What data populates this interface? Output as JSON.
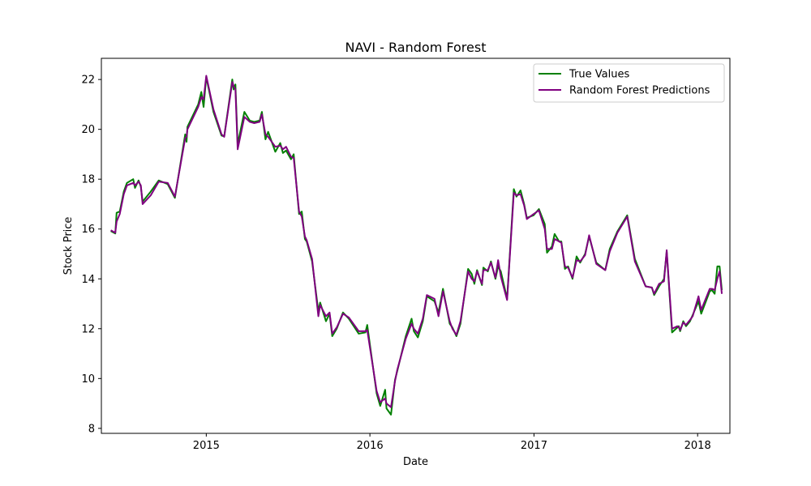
{
  "chart_data": {
    "type": "line",
    "title": "NAVI - Random Forest",
    "xlabel": "Date",
    "ylabel": "Stock Price",
    "x_axis": {
      "kind": "date",
      "range": [
        "2014-05-12",
        "2018-03-14"
      ],
      "ticks": [
        {
          "date": "2015-01-01",
          "label": "2015"
        },
        {
          "date": "2016-01-01",
          "label": "2016"
        },
        {
          "date": "2017-01-01",
          "label": "2017"
        },
        {
          "date": "2018-01-01",
          "label": "2018"
        }
      ]
    },
    "y_axis": {
      "range": [
        7.8,
        22.85
      ],
      "ticks": [
        8,
        10,
        12,
        14,
        16,
        18,
        20,
        22
      ]
    },
    "grid": false,
    "legend": {
      "placement": "top-right"
    },
    "series": [
      {
        "name": "True Values",
        "color": "#008000",
        "points": [
          [
            "2014-06-02",
            15.92
          ],
          [
            "2014-06-12",
            15.82
          ],
          [
            "2014-06-15",
            16.65
          ],
          [
            "2014-06-22",
            16.7
          ],
          [
            "2014-07-01",
            17.5
          ],
          [
            "2014-07-08",
            17.85
          ],
          [
            "2014-07-22",
            18.0
          ],
          [
            "2014-07-26",
            17.65
          ],
          [
            "2014-08-03",
            17.95
          ],
          [
            "2014-08-08",
            17.7
          ],
          [
            "2014-08-12",
            17.1
          ],
          [
            "2014-08-30",
            17.5
          ],
          [
            "2014-09-17",
            17.95
          ],
          [
            "2014-10-07",
            17.8
          ],
          [
            "2014-10-23",
            17.25
          ],
          [
            "2014-11-15",
            19.8
          ],
          [
            "2014-11-18",
            19.5
          ],
          [
            "2014-11-20",
            20.1
          ],
          [
            "2014-12-14",
            21.0
          ],
          [
            "2014-12-21",
            21.5
          ],
          [
            "2014-12-26",
            20.9
          ],
          [
            "2015-01-01",
            22.1
          ],
          [
            "2015-01-17",
            20.7
          ],
          [
            "2015-02-04",
            19.75
          ],
          [
            "2015-02-10",
            19.72
          ],
          [
            "2015-02-28",
            22.0
          ],
          [
            "2015-03-03",
            21.6
          ],
          [
            "2015-03-07",
            21.8
          ],
          [
            "2015-03-12",
            19.4
          ],
          [
            "2015-03-27",
            20.7
          ],
          [
            "2015-04-08",
            20.35
          ],
          [
            "2015-04-18",
            20.3
          ],
          [
            "2015-04-30",
            20.35
          ],
          [
            "2015-05-05",
            20.7
          ],
          [
            "2015-05-13",
            19.6
          ],
          [
            "2015-05-19",
            19.9
          ],
          [
            "2015-06-04",
            19.1
          ],
          [
            "2015-06-15",
            19.45
          ],
          [
            "2015-06-21",
            19.05
          ],
          [
            "2015-06-28",
            19.15
          ],
          [
            "2015-07-09",
            18.8
          ],
          [
            "2015-07-15",
            19.0
          ],
          [
            "2015-07-27",
            16.6
          ],
          [
            "2015-08-02",
            16.7
          ],
          [
            "2015-08-09",
            15.6
          ],
          [
            "2015-08-13",
            15.5
          ],
          [
            "2015-08-25",
            14.7
          ],
          [
            "2015-09-08",
            12.7
          ],
          [
            "2015-09-12",
            13.05
          ],
          [
            "2015-09-25",
            12.3
          ],
          [
            "2015-10-03",
            12.6
          ],
          [
            "2015-10-09",
            11.7
          ],
          [
            "2015-10-19",
            12.0
          ],
          [
            "2015-11-02",
            12.65
          ],
          [
            "2015-11-15",
            12.4
          ],
          [
            "2015-12-07",
            11.8
          ],
          [
            "2015-12-22",
            11.85
          ],
          [
            "2015-12-26",
            12.15
          ],
          [
            "2016-01-16",
            9.4
          ],
          [
            "2016-01-24",
            8.9
          ],
          [
            "2016-02-04",
            9.55
          ],
          [
            "2016-02-07",
            8.8
          ],
          [
            "2016-02-17",
            8.55
          ],
          [
            "2016-02-26",
            9.95
          ],
          [
            "2016-03-02",
            10.3
          ],
          [
            "2016-03-21",
            11.7
          ],
          [
            "2016-04-03",
            12.4
          ],
          [
            "2016-04-08",
            11.9
          ],
          [
            "2016-04-17",
            11.65
          ],
          [
            "2016-04-28",
            12.3
          ],
          [
            "2016-05-07",
            13.3
          ],
          [
            "2016-05-24",
            13.1
          ],
          [
            "2016-06-02",
            12.65
          ],
          [
            "2016-06-12",
            13.6
          ],
          [
            "2016-06-27",
            12.2
          ],
          [
            "2016-07-03",
            12.05
          ],
          [
            "2016-07-12",
            11.7
          ],
          [
            "2016-07-21",
            12.2
          ],
          [
            "2016-08-07",
            14.4
          ],
          [
            "2016-08-15",
            14.2
          ],
          [
            "2016-08-21",
            13.8
          ],
          [
            "2016-08-27",
            14.35
          ],
          [
            "2016-09-07",
            13.75
          ],
          [
            "2016-09-10",
            14.45
          ],
          [
            "2016-09-20",
            14.3
          ],
          [
            "2016-09-27",
            14.7
          ],
          [
            "2016-10-07",
            14.0
          ],
          [
            "2016-10-13",
            14.5
          ],
          [
            "2016-10-19",
            14.3
          ],
          [
            "2016-11-02",
            13.2
          ],
          [
            "2016-11-17",
            17.6
          ],
          [
            "2016-11-23",
            17.3
          ],
          [
            "2016-12-02",
            17.55
          ],
          [
            "2016-12-10",
            17.0
          ],
          [
            "2016-12-16",
            16.45
          ],
          [
            "2016-12-31",
            16.55
          ],
          [
            "2017-01-12",
            16.8
          ],
          [
            "2017-01-25",
            16.2
          ],
          [
            "2017-01-30",
            15.05
          ],
          [
            "2017-02-10",
            15.3
          ],
          [
            "2017-02-16",
            15.8
          ],
          [
            "2017-02-26",
            15.5
          ],
          [
            "2017-03-03",
            15.5
          ],
          [
            "2017-03-11",
            14.4
          ],
          [
            "2017-03-18",
            14.5
          ],
          [
            "2017-03-28",
            14.0
          ],
          [
            "2017-04-06",
            14.9
          ],
          [
            "2017-04-14",
            14.65
          ],
          [
            "2017-04-25",
            15.0
          ],
          [
            "2017-05-04",
            15.7
          ],
          [
            "2017-05-20",
            14.65
          ],
          [
            "2017-06-09",
            14.35
          ],
          [
            "2017-06-19",
            15.2
          ],
          [
            "2017-07-06",
            15.9
          ],
          [
            "2017-07-28",
            16.55
          ],
          [
            "2017-08-14",
            14.8
          ],
          [
            "2017-09-07",
            13.7
          ],
          [
            "2017-09-21",
            13.65
          ],
          [
            "2017-09-26",
            13.35
          ],
          [
            "2017-10-07",
            13.7
          ],
          [
            "2017-10-18",
            14.0
          ],
          [
            "2017-10-24",
            15.1
          ],
          [
            "2017-11-05",
            11.85
          ],
          [
            "2017-11-17",
            12.05
          ],
          [
            "2017-11-20",
            12.1
          ],
          [
            "2017-11-23",
            11.9
          ],
          [
            "2017-11-30",
            12.3
          ],
          [
            "2017-12-06",
            12.1
          ],
          [
            "2017-12-15",
            12.3
          ],
          [
            "2017-12-21",
            12.55
          ],
          [
            "2018-01-03",
            13.1
          ],
          [
            "2018-01-09",
            12.6
          ],
          [
            "2018-01-28",
            13.5
          ],
          [
            "2018-02-02",
            13.55
          ],
          [
            "2018-02-08",
            13.4
          ],
          [
            "2018-02-14",
            14.5
          ],
          [
            "2018-02-19",
            14.5
          ],
          [
            "2018-02-24",
            13.55
          ]
        ]
      },
      {
        "name": "Random Forest Predictions",
        "color": "#800080",
        "points": [
          [
            "2014-06-02",
            15.95
          ],
          [
            "2014-06-12",
            15.85
          ],
          [
            "2014-06-15",
            16.3
          ],
          [
            "2014-06-22",
            16.6
          ],
          [
            "2014-07-01",
            17.4
          ],
          [
            "2014-07-08",
            17.75
          ],
          [
            "2014-07-22",
            17.85
          ],
          [
            "2014-07-26",
            17.75
          ],
          [
            "2014-08-03",
            17.9
          ],
          [
            "2014-08-08",
            17.75
          ],
          [
            "2014-08-12",
            17.0
          ],
          [
            "2014-08-30",
            17.35
          ],
          [
            "2014-09-17",
            17.9
          ],
          [
            "2014-10-07",
            17.85
          ],
          [
            "2014-10-23",
            17.3
          ],
          [
            "2014-11-15",
            19.65
          ],
          [
            "2014-11-18",
            19.7
          ],
          [
            "2014-11-20",
            20.0
          ],
          [
            "2014-12-14",
            20.9
          ],
          [
            "2014-12-21",
            21.3
          ],
          [
            "2014-12-26",
            21.2
          ],
          [
            "2015-01-01",
            22.15
          ],
          [
            "2015-01-17",
            20.8
          ],
          [
            "2015-02-04",
            19.8
          ],
          [
            "2015-02-10",
            19.7
          ],
          [
            "2015-02-28",
            21.9
          ],
          [
            "2015-03-03",
            21.75
          ],
          [
            "2015-03-07",
            21.6
          ],
          [
            "2015-03-12",
            19.2
          ],
          [
            "2015-03-27",
            20.5
          ],
          [
            "2015-04-08",
            20.3
          ],
          [
            "2015-04-18",
            20.25
          ],
          [
            "2015-04-30",
            20.3
          ],
          [
            "2015-05-05",
            20.6
          ],
          [
            "2015-05-13",
            19.8
          ],
          [
            "2015-05-19",
            19.7
          ],
          [
            "2015-06-04",
            19.3
          ],
          [
            "2015-06-15",
            19.35
          ],
          [
            "2015-06-21",
            19.2
          ],
          [
            "2015-06-28",
            19.3
          ],
          [
            "2015-07-09",
            18.9
          ],
          [
            "2015-07-15",
            18.85
          ],
          [
            "2015-07-27",
            16.7
          ],
          [
            "2015-08-02",
            16.5
          ],
          [
            "2015-08-09",
            15.7
          ],
          [
            "2015-08-13",
            15.55
          ],
          [
            "2015-08-25",
            14.8
          ],
          [
            "2015-09-08",
            12.5
          ],
          [
            "2015-09-12",
            12.95
          ],
          [
            "2015-09-25",
            12.5
          ],
          [
            "2015-10-03",
            12.65
          ],
          [
            "2015-10-09",
            11.8
          ],
          [
            "2015-10-19",
            12.05
          ],
          [
            "2015-11-02",
            12.6
          ],
          [
            "2015-11-15",
            12.45
          ],
          [
            "2015-12-07",
            11.9
          ],
          [
            "2015-12-22",
            11.9
          ],
          [
            "2015-12-26",
            11.95
          ],
          [
            "2016-01-16",
            9.5
          ],
          [
            "2016-01-24",
            9.05
          ],
          [
            "2016-02-04",
            9.2
          ],
          [
            "2016-02-07",
            9.0
          ],
          [
            "2016-02-17",
            8.85
          ],
          [
            "2016-02-26",
            9.9
          ],
          [
            "2016-03-02",
            10.35
          ],
          [
            "2016-03-21",
            11.6
          ],
          [
            "2016-04-03",
            12.2
          ],
          [
            "2016-04-08",
            12.0
          ],
          [
            "2016-04-17",
            11.8
          ],
          [
            "2016-04-28",
            12.4
          ],
          [
            "2016-05-07",
            13.35
          ],
          [
            "2016-05-24",
            13.2
          ],
          [
            "2016-06-02",
            12.5
          ],
          [
            "2016-06-12",
            13.5
          ],
          [
            "2016-06-27",
            12.3
          ],
          [
            "2016-07-03",
            12.0
          ],
          [
            "2016-07-12",
            11.75
          ],
          [
            "2016-07-21",
            12.3
          ],
          [
            "2016-08-07",
            14.3
          ],
          [
            "2016-08-15",
            14.0
          ],
          [
            "2016-08-21",
            13.9
          ],
          [
            "2016-08-27",
            14.3
          ],
          [
            "2016-09-07",
            13.8
          ],
          [
            "2016-09-10",
            14.35
          ],
          [
            "2016-09-20",
            14.35
          ],
          [
            "2016-09-27",
            14.65
          ],
          [
            "2016-10-07",
            14.05
          ],
          [
            "2016-10-13",
            14.75
          ],
          [
            "2016-10-19",
            14.1
          ],
          [
            "2016-11-02",
            13.15
          ],
          [
            "2016-11-17",
            17.45
          ],
          [
            "2016-11-23",
            17.35
          ],
          [
            "2016-12-02",
            17.4
          ],
          [
            "2016-12-10",
            16.95
          ],
          [
            "2016-12-16",
            16.4
          ],
          [
            "2016-12-31",
            16.6
          ],
          [
            "2017-01-12",
            16.75
          ],
          [
            "2017-01-25",
            16.0
          ],
          [
            "2017-01-30",
            15.2
          ],
          [
            "2017-02-10",
            15.2
          ],
          [
            "2017-02-16",
            15.6
          ],
          [
            "2017-02-26",
            15.5
          ],
          [
            "2017-03-03",
            15.45
          ],
          [
            "2017-03-11",
            14.5
          ],
          [
            "2017-03-18",
            14.45
          ],
          [
            "2017-03-28",
            14.05
          ],
          [
            "2017-04-06",
            14.75
          ],
          [
            "2017-04-14",
            14.7
          ],
          [
            "2017-04-25",
            14.95
          ],
          [
            "2017-05-04",
            15.75
          ],
          [
            "2017-05-20",
            14.6
          ],
          [
            "2017-06-09",
            14.35
          ],
          [
            "2017-06-19",
            15.1
          ],
          [
            "2017-07-06",
            15.85
          ],
          [
            "2017-07-28",
            16.5
          ],
          [
            "2017-08-14",
            14.7
          ],
          [
            "2017-09-07",
            13.7
          ],
          [
            "2017-09-21",
            13.65
          ],
          [
            "2017-09-26",
            13.4
          ],
          [
            "2017-10-07",
            13.8
          ],
          [
            "2017-10-18",
            13.9
          ],
          [
            "2017-10-24",
            15.15
          ],
          [
            "2017-11-05",
            12.0
          ],
          [
            "2017-11-17",
            12.1
          ],
          [
            "2017-11-20",
            12.05
          ],
          [
            "2017-11-23",
            11.95
          ],
          [
            "2017-11-30",
            12.25
          ],
          [
            "2017-12-06",
            12.15
          ],
          [
            "2017-12-15",
            12.35
          ],
          [
            "2017-12-21",
            12.5
          ],
          [
            "2018-01-03",
            13.3
          ],
          [
            "2018-01-09",
            12.75
          ],
          [
            "2018-01-28",
            13.6
          ],
          [
            "2018-02-02",
            13.6
          ],
          [
            "2018-02-08",
            13.55
          ],
          [
            "2018-02-14",
            14.0
          ],
          [
            "2018-02-19",
            14.3
          ],
          [
            "2018-02-24",
            13.4
          ]
        ]
      }
    ]
  }
}
